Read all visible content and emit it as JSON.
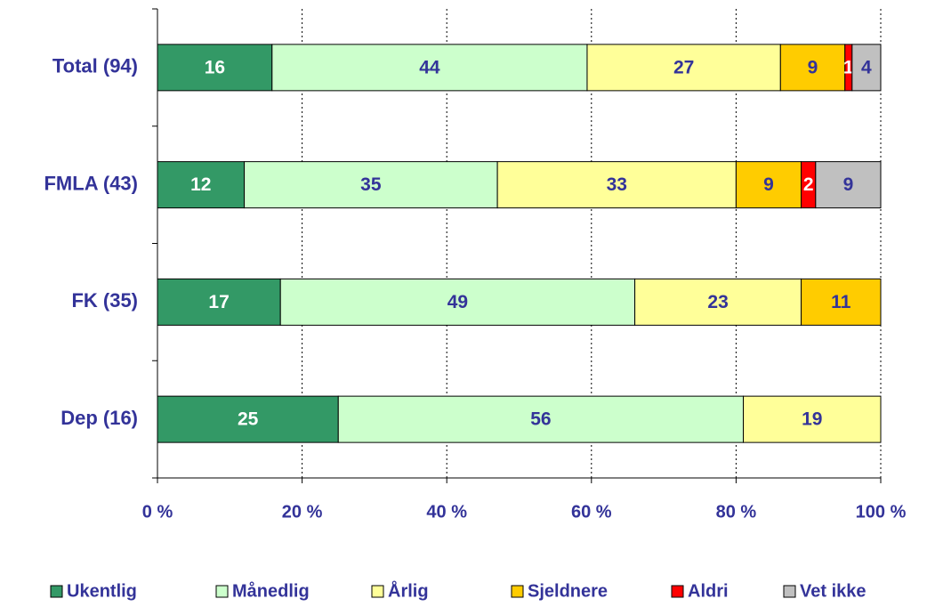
{
  "chart_data": {
    "type": "bar",
    "orientation": "horizontal",
    "stacking": "percent",
    "categories": [
      "Total (94)",
      "FMLA (43)",
      "FK (35)",
      "Dep (16)"
    ],
    "series": [
      {
        "name": "Ukentlig",
        "color": "#339966",
        "label_color": "#ffffff",
        "values": [
          16,
          12,
          17,
          25
        ]
      },
      {
        "name": "Månedlig",
        "color": "#ccffcc",
        "label_color": "#333399",
        "values": [
          44,
          35,
          49,
          56
        ]
      },
      {
        "name": "Årlig",
        "color": "#ffff99",
        "label_color": "#333399",
        "values": [
          27,
          33,
          23,
          19
        ]
      },
      {
        "name": "Sjeldnere",
        "color": "#ffcc00",
        "label_color": "#333399",
        "values": [
          9,
          9,
          11,
          null
        ]
      },
      {
        "name": "Aldri",
        "color": "#ff0000",
        "label_color": "#ffffff",
        "values": [
          1,
          2,
          null,
          null
        ]
      },
      {
        "name": "Vet ikke",
        "color": "#c0c0c0",
        "label_color": "#333399",
        "values": [
          4,
          9,
          null,
          null
        ]
      }
    ],
    "xlim": [
      0,
      100
    ],
    "xticks": [
      {
        "value": 0,
        "label": "0 %"
      },
      {
        "value": 20,
        "label": "20 %"
      },
      {
        "value": 40,
        "label": "40 %"
      },
      {
        "value": 60,
        "label": "60 %"
      },
      {
        "value": 80,
        "label": "80 %"
      },
      {
        "value": 100,
        "label": "100 %"
      }
    ],
    "grid": true,
    "legend": "bottom"
  }
}
